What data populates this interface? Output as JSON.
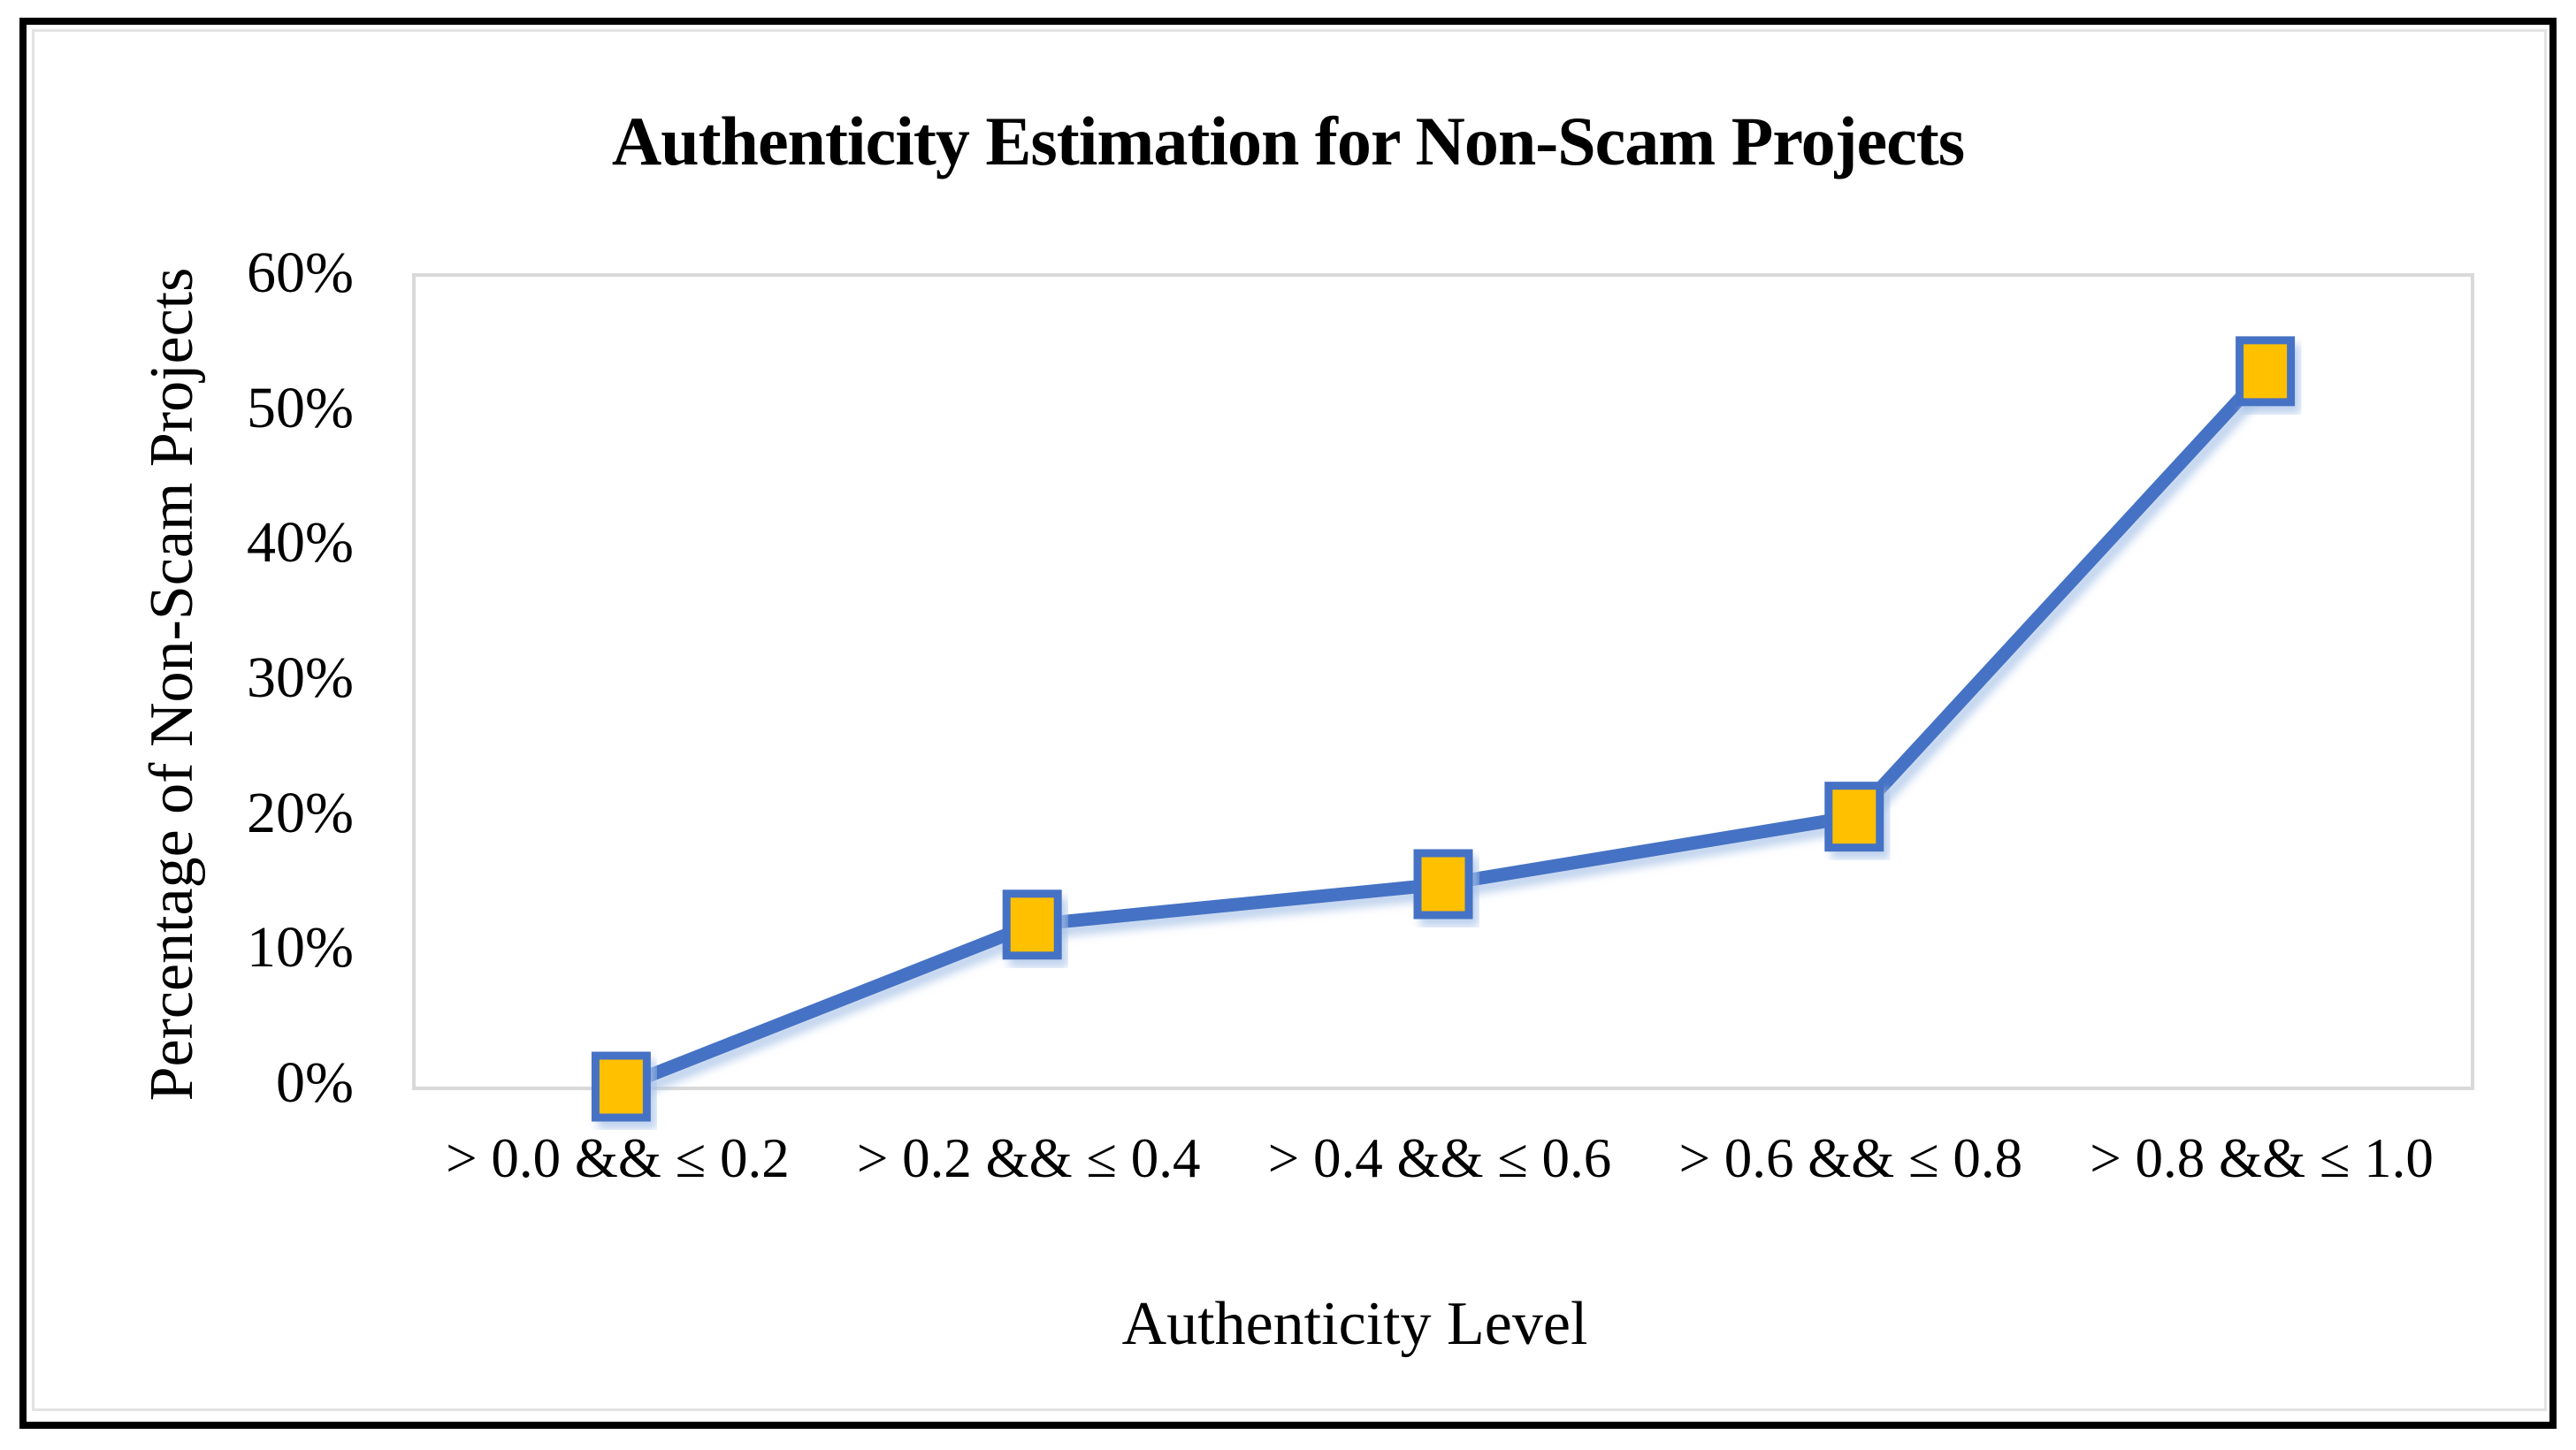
{
  "figure": {
    "background": "#ffffff",
    "outer_border_color": "#000000",
    "inner_border_color": "#e3e3e3"
  },
  "chart_data": {
    "type": "line",
    "title": "Authenticity Estimation for Non-Scam Projects",
    "xlabel": "Authenticity Level",
    "ylabel": "Percentage of Non-Scam Projects",
    "categories": [
      "> 0.0 && ≤ 0.2",
      "> 0.2 && ≤ 0.4",
      "> 0.4 && ≤ 0.6",
      "> 0.6 && ≤ 0.8",
      "> 0.8 && ≤ 1.0"
    ],
    "series": [
      {
        "name": "Percentage of Non-Scam Projects",
        "values_percent": [
          0,
          12,
          15,
          20,
          53
        ]
      }
    ],
    "ylim": [
      0,
      60
    ],
    "ytick_step": 10,
    "ytick_labels": [
      "0%",
      "10%",
      "20%",
      "30%",
      "40%",
      "50%",
      "60%"
    ],
    "grid": false,
    "legend": "none",
    "marker_shape": "square",
    "colors": {
      "line": "#4472C4",
      "line_shadow": "#aac4e8",
      "marker_fill": "#FFC000",
      "marker_border": "#4472C4",
      "plot_border": "#d9d9d9",
      "text": "#000000"
    }
  }
}
